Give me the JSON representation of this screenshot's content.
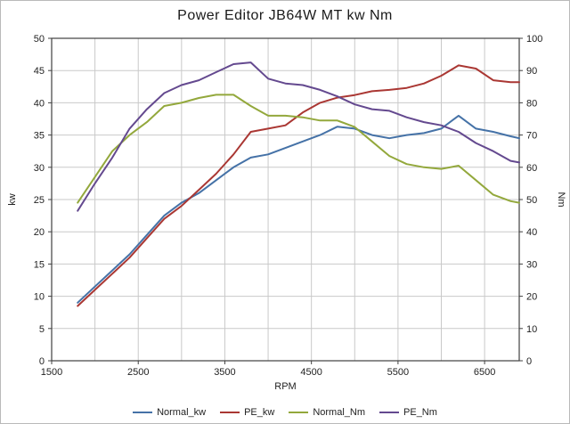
{
  "chart_data": {
    "type": "line",
    "title": "Power Editor  JB64W MT  kw Nm",
    "x_label": "RPM",
    "y_left_label": "kw",
    "y_right_label": "Nm",
    "x_range": [
      1500,
      6900
    ],
    "x_ticks": [
      1500,
      2500,
      3500,
      4500,
      5500,
      6500
    ],
    "x_grid_step": 500,
    "y_left": {
      "range": [
        0,
        50
      ],
      "tick_step": 5
    },
    "y_right": {
      "range": [
        0,
        100
      ],
      "tick_step": 10
    },
    "grid": true,
    "legend_position": "bottom",
    "colors": {
      "grid": "#c9c9c9",
      "border": "#404040",
      "text": "#222222"
    },
    "x": [
      1800,
      2000,
      2200,
      2400,
      2600,
      2800,
      3000,
      3200,
      3400,
      3600,
      3800,
      4000,
      4200,
      4400,
      4600,
      4800,
      5000,
      5200,
      5400,
      5600,
      5800,
      6000,
      6200,
      6400,
      6600,
      6800,
      6900
    ],
    "series": [
      {
        "name": "Normal_kw",
        "color": "#4572a7",
        "axis": "left",
        "values": [
          9.0,
          11.5,
          14.0,
          16.5,
          19.5,
          22.5,
          24.5,
          26.0,
          28.0,
          30.0,
          31.5,
          32.0,
          33.0,
          34.0,
          35.0,
          36.3,
          36.0,
          35.0,
          34.5,
          35.0,
          35.3,
          36.0,
          38.0,
          36.0,
          35.5,
          34.8,
          34.5
        ]
      },
      {
        "name": "PE_kw",
        "color": "#aa3733",
        "axis": "left",
        "values": [
          8.5,
          11.0,
          13.5,
          16.0,
          19.0,
          22.0,
          24.0,
          26.5,
          29.0,
          32.0,
          35.5,
          36.0,
          36.5,
          38.5,
          40.0,
          40.8,
          41.2,
          41.8,
          42.0,
          42.3,
          43.0,
          44.2,
          45.8,
          45.3,
          43.5,
          43.2,
          43.2
        ]
      },
      {
        "name": "Normal_Nm",
        "color": "#93a83c",
        "axis": "right",
        "values": [
          49,
          57,
          65,
          70,
          74,
          79,
          80,
          81.5,
          82.5,
          82.5,
          79,
          76,
          76,
          75.5,
          74.5,
          74.5,
          72.5,
          68,
          63.5,
          61,
          60,
          59.5,
          60.5,
          56,
          51.5,
          49.5,
          49
        ]
      },
      {
        "name": "PE_Nm",
        "color": "#64498f",
        "axis": "right",
        "values": [
          46.5,
          55,
          63,
          72,
          78,
          83,
          85.5,
          87,
          89.5,
          92,
          92.5,
          87.5,
          86,
          85.5,
          84,
          82,
          79.5,
          78,
          77.5,
          75.5,
          74,
          73,
          71,
          67.5,
          65,
          62,
          61.5
        ]
      }
    ]
  }
}
